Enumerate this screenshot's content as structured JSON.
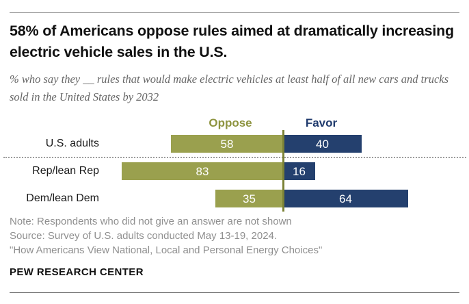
{
  "header": {
    "title": "58% of Americans oppose rules aimed at dramatically increasing electric vehicle sales in the U.S.",
    "subtitle": "% who say they __ rules that would make electric vehicles at least half of all new cars and trucks sold in the United States by 2032"
  },
  "chart_data": {
    "type": "bar",
    "variant": "diverging-horizontal",
    "categories": [
      "U.S. adults",
      "Rep/lean Rep",
      "Dem/lean Dem"
    ],
    "series": [
      {
        "name": "Oppose",
        "side": "left",
        "color": "#9aa04e",
        "values": [
          58,
          83,
          35
        ]
      },
      {
        "name": "Favor",
        "side": "right",
        "color": "#24406e",
        "values": [
          40,
          16,
          64
        ]
      }
    ],
    "value_unit": "%",
    "legend_position": "top",
    "separator_after_category": "U.S. adults",
    "grid": "off"
  },
  "notes": {
    "note": "Note: Respondents who did not give an answer are not shown",
    "source": "Source: Survey of U.S. adults conducted May 13-19, 2024.",
    "report": "\"How Americans View National, Local and Personal Energy Choices\""
  },
  "footer": {
    "brand": "PEW RESEARCH CENTER"
  },
  "colors": {
    "oppose_bar": "#9aa04e",
    "favor_bar": "#24406e",
    "oppose_legend_text": "#8e9440",
    "favor_legend_text": "#1f3a6d",
    "axis_line": "#7b8236",
    "bar_value_text": "#ffffff",
    "title_text": "#111111",
    "subtitle_text": "#666666",
    "note_text": "#8f8f8f"
  }
}
